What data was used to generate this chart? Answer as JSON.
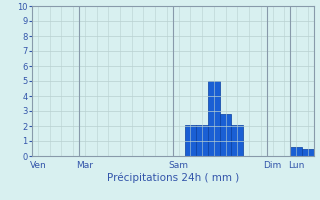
{
  "xlabel": "Précipitations 24h ( mm )",
  "background_color": "#d8f0f0",
  "grid_color": "#b8d0d0",
  "bar_color": "#1a5fd4",
  "bar_edge_color": "#0a3fa0",
  "ylim": [
    0,
    10
  ],
  "yticks": [
    0,
    1,
    2,
    3,
    4,
    5,
    6,
    7,
    8,
    9,
    10
  ],
  "num_bars": 24,
  "bar_values": [
    0,
    0,
    0,
    0,
    0,
    0,
    0,
    0,
    0,
    0,
    0,
    0,
    0,
    2.1,
    2.1,
    5.0,
    2.8,
    2.1,
    0,
    0,
    0,
    0,
    0.6,
    0.45
  ],
  "vline_positions": [
    4,
    12,
    20,
    22
  ],
  "tick_positions": [
    0,
    4,
    12,
    20,
    22
  ],
  "tick_labels": [
    "Ven",
    "Mar",
    "Sam",
    "Dim",
    "Lun"
  ],
  "tick_fontsize": 6.5,
  "ytick_fontsize": 6,
  "xlabel_fontsize": 7.5,
  "spine_color": "#889aaa"
}
